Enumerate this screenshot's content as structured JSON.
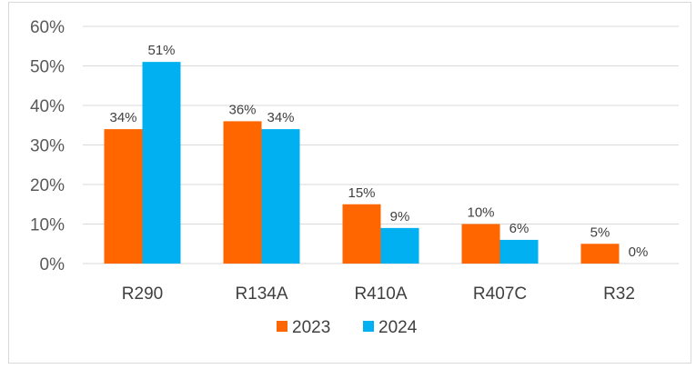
{
  "chart_data": {
    "type": "bar",
    "title": "",
    "xlabel": "",
    "ylabel": "",
    "categories": [
      "R290",
      "R134A",
      "R410A",
      "R407C",
      "R32"
    ],
    "series": [
      {
        "name": "2023",
        "values": [
          34,
          36,
          15,
          10,
          5
        ],
        "labels": [
          "34%",
          "36%",
          "15%",
          "10%",
          "5%"
        ],
        "color": "#ff6600"
      },
      {
        "name": "2024",
        "values": [
          51,
          34,
          9,
          6,
          0
        ],
        "labels": [
          "51%",
          "34%",
          "9%",
          "6%",
          "0%"
        ],
        "color": "#00b0f0"
      }
    ],
    "ylim": [
      0,
      60
    ],
    "yticks": [
      0,
      10,
      20,
      30,
      40,
      50,
      60
    ],
    "ytick_labels": [
      "0%",
      "10%",
      "20%",
      "30%",
      "40%",
      "50%",
      "60%"
    ],
    "grid": true,
    "legend_position": "bottom"
  }
}
